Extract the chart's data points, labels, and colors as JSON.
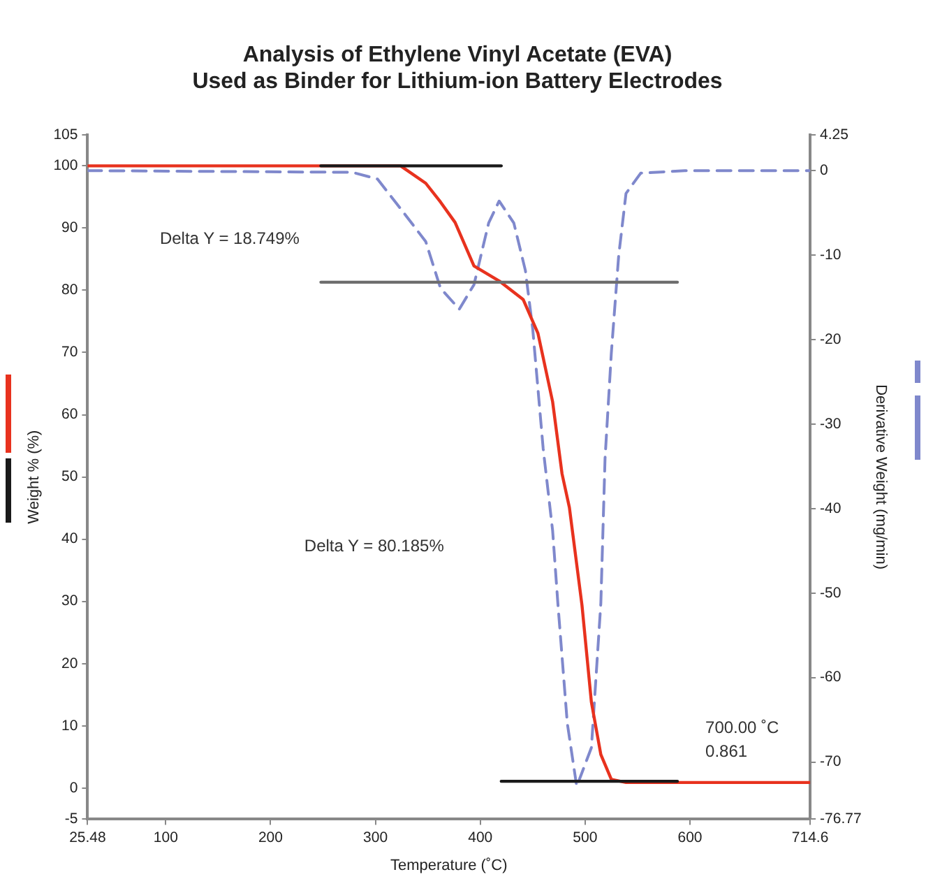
{
  "chart_data": {
    "type": "line",
    "title": "Analysis of Ethylene Vinyl Acetate (EVA)\nUsed as Binder for Lithium-ion Battery Electrodes",
    "xlabel": "Temperature (˚C)",
    "ylabel": "Weight % (%)",
    "y2label": "Derivative Weight (mg/min)",
    "xlim": [
      25.48,
      714.6
    ],
    "xticks": [
      25.48,
      100,
      200,
      300,
      400,
      500,
      600,
      714.6
    ],
    "ylim": [
      -5,
      105
    ],
    "yticks": [
      -5,
      0,
      10,
      20,
      30,
      40,
      50,
      60,
      70,
      80,
      90,
      100,
      105
    ],
    "y2lim": [
      -76.77,
      4.25
    ],
    "y2ticks": [
      -76.77,
      -70,
      -60,
      -50,
      -40,
      -30,
      -20,
      -10,
      0,
      4.25
    ],
    "grid": false,
    "legend": false,
    "marker": "none",
    "series": [
      {
        "color": "#e8321e",
        "line_style": "solid",
        "x": [
          25.48,
          324,
          348,
          362,
          376,
          394,
          418,
          441,
          455,
          469,
          478,
          485,
          497,
          506,
          515,
          525,
          539,
          700,
          714.6
        ],
        "values": [
          100,
          100,
          97.2,
          94.2,
          90.9,
          83.9,
          81.5,
          78.5,
          73.1,
          62.1,
          50.5,
          45.1,
          29.4,
          13.8,
          5.4,
          1.4,
          0.9,
          0.9,
          0.9
        ]
      },
      {
        "color": "#7f88cc",
        "line_style": "dashed",
        "axis": "y2",
        "x": [
          25.48,
          278,
          302,
          324,
          348,
          362,
          380,
          394,
          408,
          418,
          432,
          443,
          450,
          460,
          469,
          474,
          483,
          492,
          506,
          515,
          519,
          525,
          532,
          539,
          553,
          595,
          714.6
        ],
        "values": [
          0,
          -0.2,
          -1,
          -4.5,
          -8.4,
          -13.9,
          -16.4,
          -13.5,
          -6.2,
          -3.6,
          -6.2,
          -11.8,
          -18.7,
          -32.9,
          -42.6,
          -51.2,
          -65.4,
          -72.9,
          -68.3,
          -51.2,
          -34.1,
          -21.6,
          -10.1,
          -2.7,
          -0.3,
          0,
          0
        ]
      },
      {
        "color": "#1a1a1a",
        "line_style": "solid",
        "x": [
          248,
          420
        ],
        "values": [
          100,
          100
        ]
      },
      {
        "color": "#6e6e6e",
        "line_style": "solid",
        "x": [
          248,
          588
        ],
        "values": [
          81.3,
          81.3
        ]
      },
      {
        "color": "#1a1a1a",
        "line_style": "solid",
        "x": [
          420,
          588
        ],
        "values": [
          1.1,
          1.1
        ]
      }
    ],
    "annotations": [
      "Delta Y = 18.749%",
      "Delta Y = 80.185%",
      "700.00 ˚C\n0.861"
    ]
  }
}
